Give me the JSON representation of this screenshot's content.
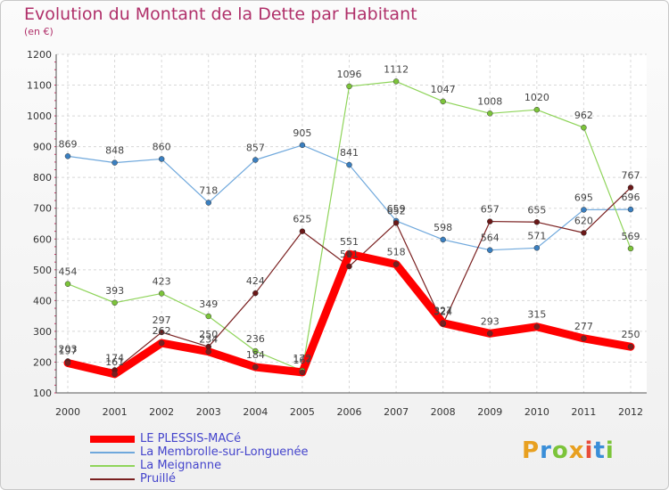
{
  "header": {
    "title": "Evolution du Montant de la Dette par Habitant",
    "unit": "(en €)"
  },
  "logo": {
    "text": "Proxiti",
    "letters": [
      "P",
      "r",
      "o",
      "x",
      "i",
      "t",
      "i"
    ],
    "colors": [
      "#e8a020",
      "#3a8ed8",
      "#7cc43a",
      "#e8a020",
      "#e84c3a",
      "#3a8ed8",
      "#7cc43a"
    ]
  },
  "chart_data": {
    "type": "line",
    "x": [
      "2000",
      "2001",
      "2002",
      "2003",
      "2004",
      "2005",
      "2006",
      "2007",
      "2008",
      "2009",
      "2010",
      "2011",
      "2012"
    ],
    "ylim": [
      100,
      1200
    ],
    "yticks": [
      "100",
      "200",
      "300",
      "400",
      "500",
      "600",
      "700",
      "800",
      "900",
      "1000",
      "1100",
      "1200"
    ],
    "grid": true,
    "legend_position": "bottom-left",
    "series": [
      {
        "name": "LE PLESSIS-MACé",
        "color": "#ff0000",
        "values": [
          197,
          161,
          262,
          234,
          184,
          167,
          551,
          518,
          327,
          293,
          315,
          277,
          250
        ]
      },
      {
        "name": "La Membrolle-sur-Longuenée",
        "color": "#6fa8dc",
        "values": [
          869,
          848,
          860,
          718,
          857,
          905,
          841,
          659,
          598,
          564,
          571,
          695,
          696
        ]
      },
      {
        "name": "La Meignanne",
        "color": "#8fd45a",
        "values": [
          454,
          393,
          423,
          349,
          236,
          172,
          1096,
          1112,
          1047,
          1008,
          1020,
          962,
          569
        ]
      },
      {
        "name": "Pruillé",
        "color": "#7a2020",
        "values": [
          203,
          174,
          297,
          250,
          424,
          625,
          511,
          652,
          324,
          657,
          655,
          620,
          767
        ]
      }
    ]
  }
}
